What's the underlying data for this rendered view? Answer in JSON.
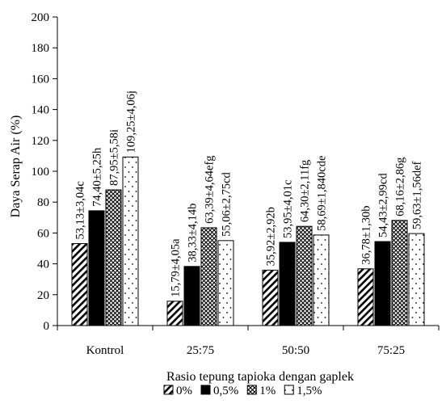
{
  "chart_data": {
    "type": "bar",
    "title": "",
    "xlabel": "Rasio tepung tapioka dengan gaplek",
    "ylabel": "Daya Serap Air (%)",
    "ylim": [
      0,
      200
    ],
    "yticks": [
      0,
      20,
      40,
      60,
      80,
      100,
      120,
      140,
      160,
      180,
      200
    ],
    "categories": [
      "Kontrol",
      "25:75",
      "50:50",
      "75:25"
    ],
    "grid": false,
    "legend_position": "bottom",
    "series": [
      {
        "name": "0%",
        "pattern": "diagonal-hatch",
        "values": [
          53.13,
          15.79,
          35.92,
          36.78
        ],
        "labels": [
          "53,13±3,04c",
          "15,79±4,05a",
          "35,92±2,92b",
          "36,78±1,30b"
        ]
      },
      {
        "name": "0,5%",
        "pattern": "solid-black",
        "values": [
          74.4,
          38.33,
          53.95,
          54.43
        ],
        "labels": [
          "74,40±5,25h",
          "38,33±4,14b",
          "53,95±4,01c",
          "54,43±2,99cd"
        ]
      },
      {
        "name": "1%",
        "pattern": "crosshatch",
        "values": [
          87.95,
          63.39,
          64.3,
          68.16
        ],
        "labels": [
          "87,95±5,58i",
          "63,39±4,64efg",
          "64,30±2,11fg",
          "68,16±2,86g"
        ]
      },
      {
        "name": "1,5%",
        "pattern": "dotted",
        "values": [
          109.25,
          55.06,
          58.69,
          59.63
        ],
        "labels": [
          "109,25±4,06j",
          "55,06±2,75cd",
          "58,69±1,840cde",
          "59,63±1,56def"
        ]
      }
    ]
  }
}
